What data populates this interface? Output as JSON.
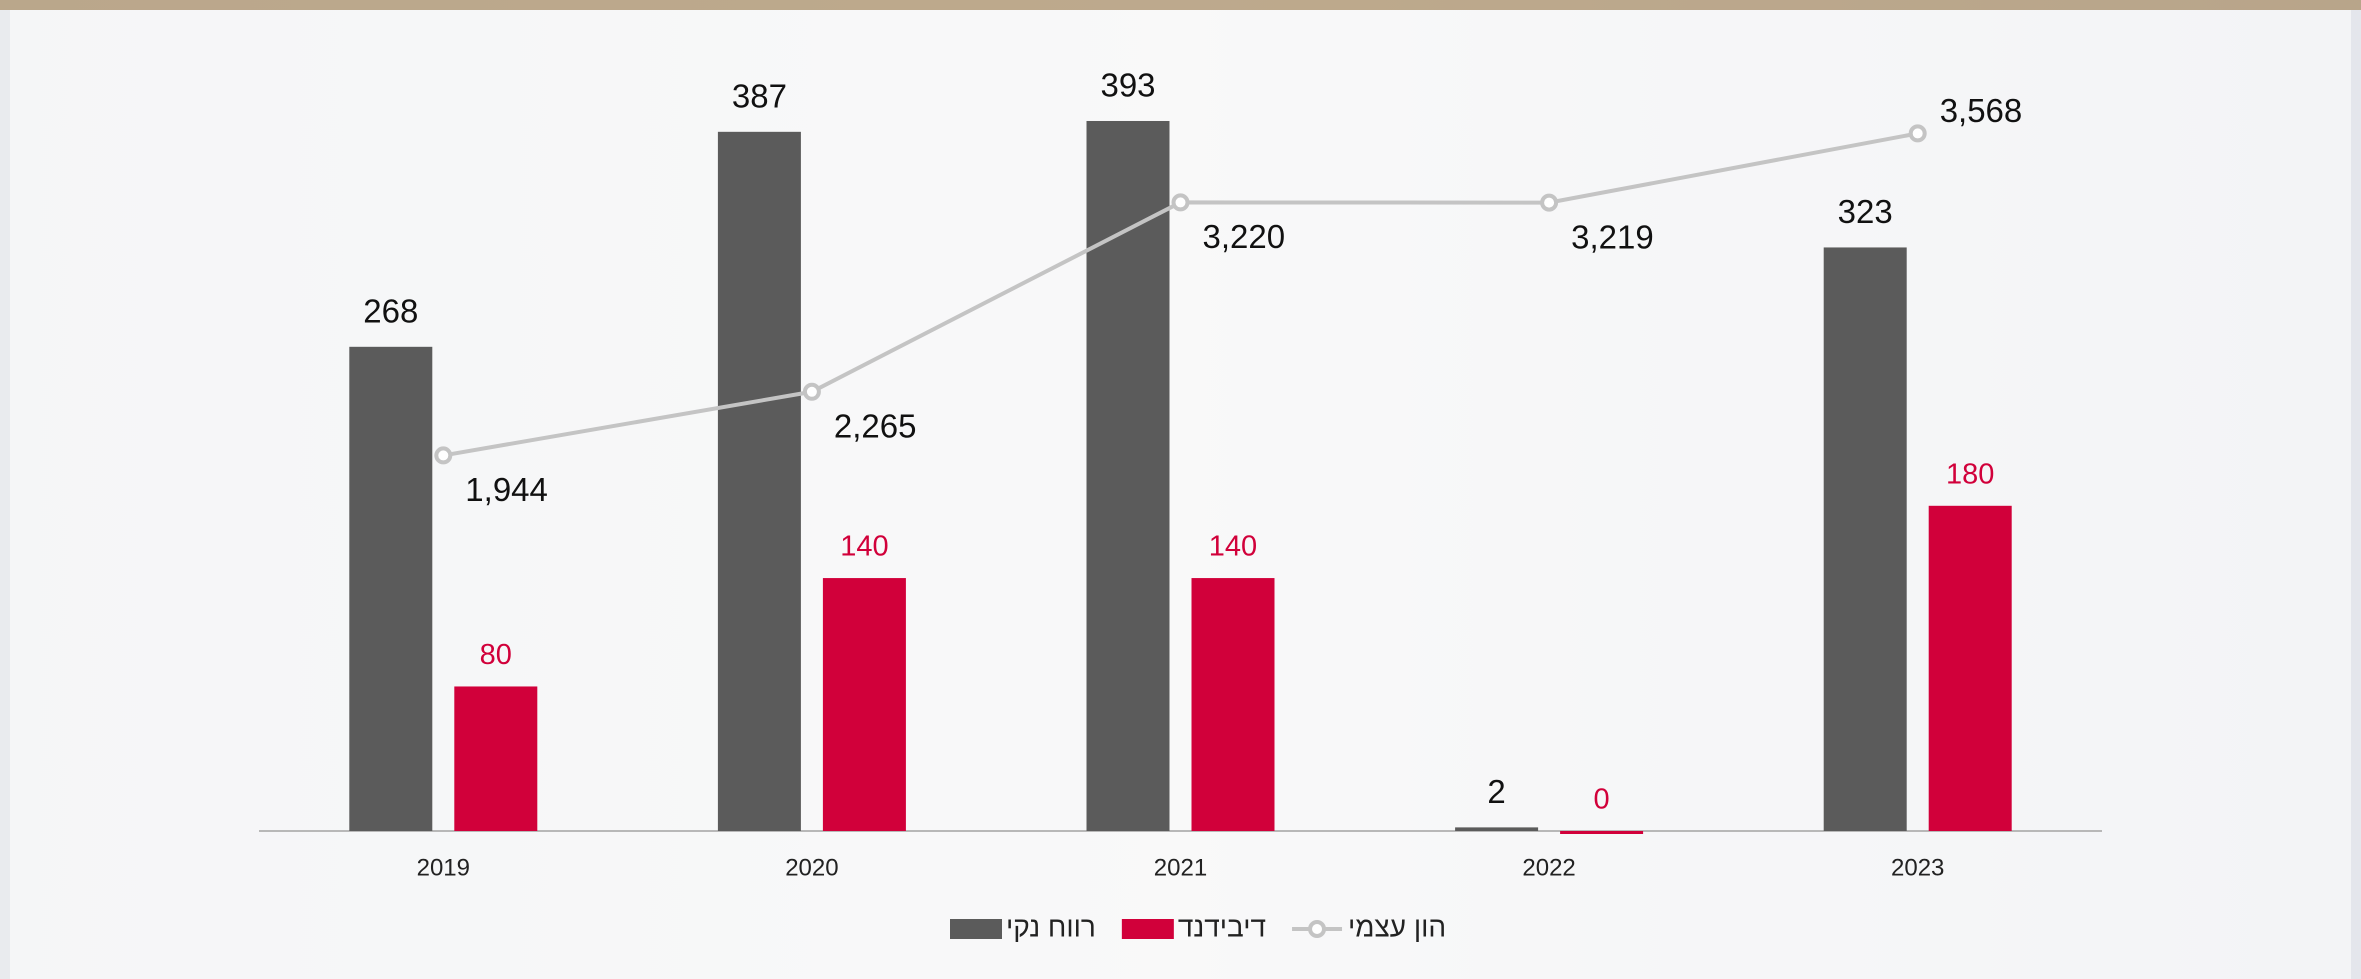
{
  "chart_data": {
    "type": "bar",
    "categories": [
      "2019",
      "2020",
      "2021",
      "2022",
      "2023"
    ],
    "series": [
      {
        "name": "רווח נקי",
        "color": "#5b5b5b",
        "values": [
          268,
          387,
          393,
          2,
          323
        ]
      },
      {
        "name": "דיבידנד",
        "color": "#d1003a",
        "values": [
          80,
          140,
          140,
          0,
          180
        ]
      },
      {
        "name": "הון עצמי",
        "color": "#c4c4c4",
        "type": "line",
        "axis": "y2",
        "values": [
          1944,
          2265,
          3220,
          3219,
          3568
        ],
        "value_labels": [
          "1,944",
          "2,265",
          "3,220",
          "3,219",
          "3,568"
        ]
      }
    ],
    "ylim": [
      0,
      450
    ],
    "y2lim": [
      50,
      4150
    ],
    "grid": false
  }
}
